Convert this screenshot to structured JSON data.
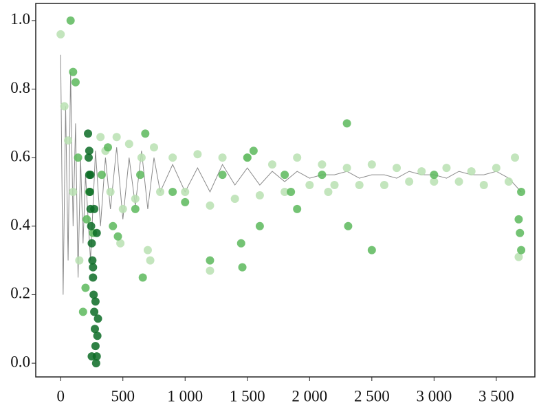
{
  "chart_data": {
    "type": "scatter",
    "xlim": [
      -200,
      3810
    ],
    "ylim": [
      -0.04,
      1.05
    ],
    "xticks": [
      0,
      500,
      {
        "value": 1000,
        "label": "1 000"
      },
      {
        "value": 1500,
        "label": "1 500"
      },
      {
        "value": 2000,
        "label": "2 000"
      },
      {
        "value": 2500,
        "label": "2 500"
      },
      {
        "value": 3000,
        "label": "3 000"
      },
      {
        "value": 3500,
        "label": "3 500"
      }
    ],
    "yticks": [
      {
        "value": 0,
        "label": "0.0"
      },
      0.2,
      0.4,
      0.6,
      0.8,
      {
        "value": 1,
        "label": "1.0"
      }
    ],
    "series": [
      {
        "style": "line",
        "color": "#8a8a8a",
        "x": [
          0,
          20,
          40,
          60,
          80,
          100,
          120,
          140,
          160,
          180,
          200,
          240,
          280,
          320,
          360,
          400,
          450,
          500,
          550,
          600,
          650,
          700,
          750,
          800,
          900,
          1000,
          1100,
          1200,
          1300,
          1400,
          1500,
          1600,
          1700,
          1800,
          1900,
          2000,
          2100,
          2200,
          2300,
          2400,
          2500,
          2600,
          2700,
          2800,
          2900,
          3000,
          3100,
          3200,
          3300,
          3400,
          3500,
          3600,
          3700
        ],
        "values": [
          0.9,
          0.2,
          0.75,
          0.3,
          0.85,
          0.4,
          0.7,
          0.25,
          0.6,
          0.35,
          0.55,
          0.3,
          0.62,
          0.4,
          0.6,
          0.45,
          0.63,
          0.42,
          0.6,
          0.46,
          0.62,
          0.45,
          0.6,
          0.5,
          0.58,
          0.5,
          0.57,
          0.5,
          0.58,
          0.52,
          0.57,
          0.52,
          0.56,
          0.53,
          0.56,
          0.54,
          0.55,
          0.55,
          0.56,
          0.54,
          0.55,
          0.55,
          0.54,
          0.56,
          0.55,
          0.55,
          0.54,
          0.56,
          0.55,
          0.55,
          0.56,
          0.54,
          0.5
        ]
      },
      {
        "style": "points",
        "color": "#b9e0b2",
        "x": [
          0,
          30,
          60,
          100,
          150,
          320,
          360,
          400,
          450,
          500,
          550,
          600,
          650,
          700,
          750,
          800,
          900,
          1000,
          1100,
          1200,
          1300,
          1400,
          1500,
          1600,
          1700,
          1800,
          1900,
          2000,
          2100,
          2200,
          2300,
          2400,
          2500,
          2600,
          2700,
          2800,
          2900,
          3000,
          3100,
          3200,
          3300,
          3400,
          3500,
          3600,
          3680,
          480,
          720,
          1200,
          2150,
          3650
        ],
        "values": [
          0.96,
          0.75,
          0.65,
          0.5,
          0.3,
          0.66,
          0.62,
          0.5,
          0.66,
          0.45,
          0.64,
          0.48,
          0.6,
          0.33,
          0.63,
          0.5,
          0.6,
          0.5,
          0.61,
          0.46,
          0.6,
          0.48,
          0.6,
          0.49,
          0.58,
          0.5,
          0.6,
          0.52,
          0.58,
          0.52,
          0.57,
          0.52,
          0.58,
          0.52,
          0.57,
          0.53,
          0.56,
          0.53,
          0.57,
          0.53,
          0.56,
          0.52,
          0.57,
          0.53,
          0.31,
          0.35,
          0.3,
          0.27,
          0.5,
          0.6
        ]
      },
      {
        "style": "points",
        "color": "#5cb85c",
        "x": [
          80,
          100,
          120,
          140,
          180,
          200,
          210,
          230,
          260,
          330,
          380,
          420,
          460,
          600,
          640,
          660,
          680,
          900,
          1000,
          1200,
          1300,
          1450,
          1460,
          1550,
          1600,
          1800,
          1850,
          1900,
          2100,
          2300,
          2310,
          2500,
          3000,
          3680,
          3690,
          3700,
          3700,
          1500
        ],
        "values": [
          1.0,
          0.85,
          0.82,
          0.6,
          0.15,
          0.22,
          0.42,
          0.5,
          0.38,
          0.55,
          0.63,
          0.4,
          0.37,
          0.45,
          0.55,
          0.25,
          0.67,
          0.5,
          0.47,
          0.3,
          0.55,
          0.35,
          0.28,
          0.62,
          0.4,
          0.55,
          0.5,
          0.45,
          0.55,
          0.7,
          0.4,
          0.33,
          0.55,
          0.42,
          0.38,
          0.33,
          0.5,
          0.6
        ]
      },
      {
        "style": "points",
        "color": "#0b6b25",
        "x": [
          220,
          225,
          230,
          235,
          240,
          245,
          250,
          255,
          260,
          265,
          270,
          275,
          280,
          285,
          290,
          295,
          300,
          230,
          250,
          270,
          290,
          240,
          260,
          280
        ],
        "values": [
          0.67,
          0.6,
          0.55,
          0.5,
          0.45,
          0.4,
          0.35,
          0.3,
          0.25,
          0.2,
          0.15,
          0.1,
          0.05,
          0.0,
          0.02,
          0.08,
          0.13,
          0.62,
          0.02,
          0.45,
          0.38,
          0.55,
          0.28,
          0.18
        ]
      }
    ]
  }
}
